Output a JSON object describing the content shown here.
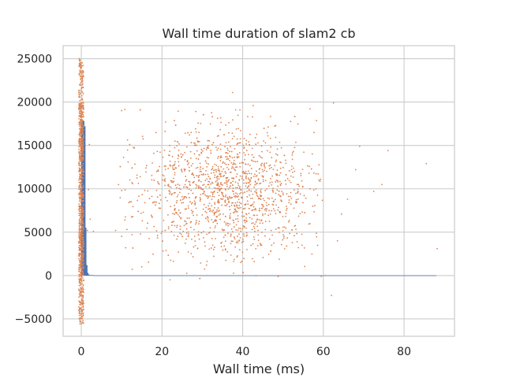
{
  "chart_data": {
    "type": "scatter",
    "title": "Wall time duration of slam2 cb",
    "xlabel": "Wall time (ms)",
    "ylabel": "",
    "xlim": [
      -4.5,
      92.5
    ],
    "ylim": [
      -7000,
      26500
    ],
    "xticks": [
      0,
      20,
      40,
      60,
      80
    ],
    "yticks": [
      -5000,
      0,
      5000,
      10000,
      15000,
      20000,
      25000
    ],
    "grid": true,
    "colors": {
      "bars": "#4c72b0",
      "points": "#dd8452",
      "grid": "#cccccc",
      "frame": "#cccccc",
      "text": "#262626"
    },
    "histogram": {
      "description_series": "blue bars",
      "bins": [
        {
          "x0": 0.0,
          "x1": 0.25,
          "count": 17600
        },
        {
          "x0": 0.25,
          "x1": 0.5,
          "count": 17800
        },
        {
          "x0": 0.5,
          "x1": 0.75,
          "count": 17800
        },
        {
          "x0": 0.75,
          "x1": 1.0,
          "count": 17200
        },
        {
          "x0": 1.0,
          "x1": 1.25,
          "count": 5500
        },
        {
          "x0": 1.25,
          "x1": 1.5,
          "count": 1200
        },
        {
          "x0": 1.5,
          "x1": 1.75,
          "count": 300
        },
        {
          "x0": 1.75,
          "x1": 2.0,
          "count": 100
        },
        {
          "x0": 2.0,
          "x1": 3.0,
          "count": 40
        },
        {
          "x0": 3.0,
          "x1": 88.0,
          "count": 3
        }
      ]
    },
    "points_summary": {
      "main_cloud": {
        "x_center": 36,
        "x_sd": 11,
        "y_center": 9800,
        "y_sd": 3700,
        "count": 1500
      },
      "near_zero_strip": {
        "x_range": [
          -0.6,
          0.6
        ],
        "y_range": [
          -5600,
          25000
        ],
        "count": 900
      },
      "outliers": [
        [
          85.5,
          12900
        ],
        [
          88.2,
          3100
        ],
        [
          76.0,
          14400
        ],
        [
          74.5,
          10500
        ],
        [
          72.5,
          9700
        ],
        [
          69.0,
          14900
        ],
        [
          68.0,
          12200
        ],
        [
          66.0,
          8800
        ],
        [
          64.5,
          7100
        ],
        [
          63.5,
          4000
        ],
        [
          62.5,
          19900
        ],
        [
          62.0,
          -2300
        ],
        [
          59.5,
          -100
        ],
        [
          60.5,
          0
        ],
        [
          2.0,
          15100
        ],
        [
          1.5,
          5200
        ],
        [
          3.0,
          5100
        ],
        [
          2.2,
          6500
        ],
        [
          1.8,
          9900
        ],
        [
          37.5,
          21100
        ],
        [
          8.5,
          5200
        ],
        [
          10.0,
          9800
        ],
        [
          11.0,
          3200
        ],
        [
          12.0,
          15100
        ],
        [
          15.0,
          1000
        ],
        [
          22.0,
          -500
        ]
      ]
    }
  }
}
